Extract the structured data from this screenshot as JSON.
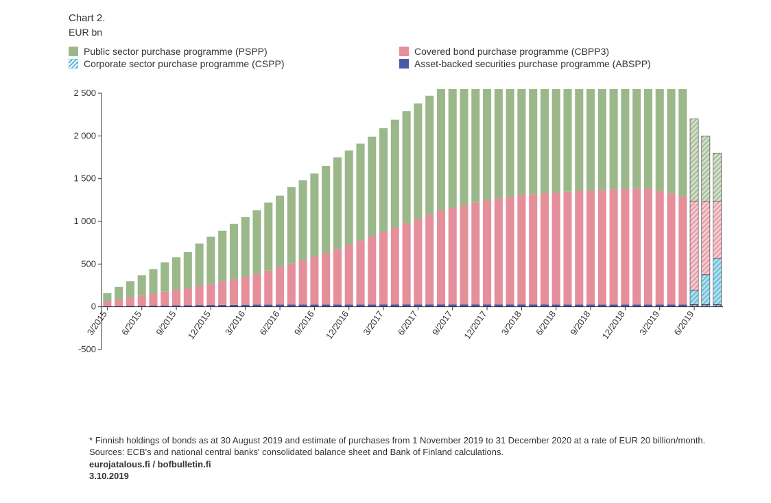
{
  "title": "Chart 2.",
  "subtitle": "EUR bn",
  "legend": [
    {
      "key": "legend.0",
      "label": "Public sector purchase programme (PSPP)",
      "fill": "#9bb88a",
      "hatched": false
    },
    {
      "key": "legend.1",
      "label": "Covered bond purchase programme (CBPP3)",
      "fill": "#e58f9b",
      "hatched": false
    },
    {
      "key": "legend.2",
      "label": "Corporate sector purchase programme (CSPP)",
      "fill": "#56b6d9",
      "hatched": true
    },
    {
      "key": "legend.3",
      "label": "Asset-backed securities purchase programme (ABSPP)",
      "fill": "#4b5aa8",
      "hatched": false
    }
  ],
  "chart": {
    "type": "stacked-bar",
    "y": {
      "min": -500,
      "max": 2500,
      "ticks": [
        -500,
        0,
        500,
        1000,
        1500,
        2000,
        2500
      ]
    },
    "x": {
      "labels": [
        "3/2015",
        "6/2015",
        "9/2015",
        "12/2015",
        "3/2016",
        "6/2016",
        "9/2016",
        "12/2016",
        "3/2017",
        "6/2017",
        "9/2017",
        "12/2017",
        "3/2018",
        "6/2018",
        "9/2018",
        "12/2018",
        "3/2019",
        "6/2019"
      ],
      "positions": [
        0,
        3,
        6,
        9,
        12,
        15,
        18,
        21,
        24,
        27,
        30,
        33,
        36,
        39,
        42,
        45,
        48,
        51
      ]
    },
    "bars_count": 54,
    "bar_width_ratio": 0.72,
    "colors": {
      "pspp": "#9bb88a",
      "cbpp3": "#e58f9b",
      "cspp": "#56b6d9",
      "abspp": "#4b5aa8",
      "background": "#ffffff",
      "axis": "#333333"
    },
    "hatched_start_index": 51,
    "series": {
      "abspp": [
        5,
        7,
        9,
        11,
        13,
        15,
        17,
        18,
        20,
        21,
        22,
        23,
        24,
        25,
        25,
        26,
        26,
        26,
        27,
        27,
        27,
        27,
        27,
        27,
        28,
        28,
        28,
        28,
        28,
        28,
        28,
        28,
        28,
        28,
        28,
        28,
        28,
        28,
        28,
        27,
        27,
        27,
        27,
        27,
        27,
        27,
        27,
        27,
        26,
        26,
        26,
        26,
        26,
        26
      ],
      "cspp": [
        0,
        0,
        0,
        0,
        0,
        0,
        0,
        0,
        0,
        0,
        0,
        0,
        0,
        0,
        0,
        0,
        0,
        0,
        0,
        0,
        0,
        0,
        0,
        0,
        0,
        0,
        0,
        0,
        0,
        0,
        0,
        0,
        0,
        0,
        0,
        0,
        0,
        0,
        0,
        0,
        0,
        0,
        0,
        0,
        0,
        0,
        0,
        0,
        0,
        0,
        0,
        170,
        350,
        540
      ],
      "cbpp3": [
        60,
        80,
        100,
        120,
        140,
        160,
        180,
        200,
        225,
        250,
        275,
        300,
        330,
        360,
        400,
        440,
        480,
        520,
        560,
        600,
        650,
        700,
        750,
        800,
        850,
        900,
        950,
        1000,
        1050,
        1100,
        1130,
        1160,
        1190,
        1220,
        1240,
        1260,
        1280,
        1290,
        1300,
        1310,
        1320,
        1330,
        1335,
        1340,
        1345,
        1350,
        1355,
        1360,
        1330,
        1300,
        1270,
        1040,
        860,
        670
      ],
      "pspp": [
        95,
        145,
        191,
        239,
        287,
        345,
        383,
        422,
        495,
        549,
        593,
        647,
        696,
        745,
        795,
        834,
        894,
        934,
        973,
        1023,
        1073,
        1103,
        1133,
        1163,
        1212,
        1262,
        1312,
        1352,
        1392,
        1432,
        1472,
        1502,
        1532,
        1562,
        1582,
        1602,
        1622,
        1642,
        1652,
        1663,
        1673,
        1683,
        1688,
        1693,
        1698,
        1703,
        1698,
        1693,
        1614,
        1554,
        1504,
        964,
        764,
        564
      ]
    }
  },
  "footer": {
    "note_star": "*",
    "note": "Finnish holdings of bonds as at 30 August 2019 and estimate of purchases from 1 November 2019 to 31 December 2020 at a rate of EUR 20 billion/month.",
    "sources_label": "Sources:",
    "sources": "ECB's and national central banks' consolidated balance sheet and Bank of Finland calculations.",
    "site": "eurojatalous.fi / bofbulletin.fi",
    "date": "3.10.2019"
  }
}
